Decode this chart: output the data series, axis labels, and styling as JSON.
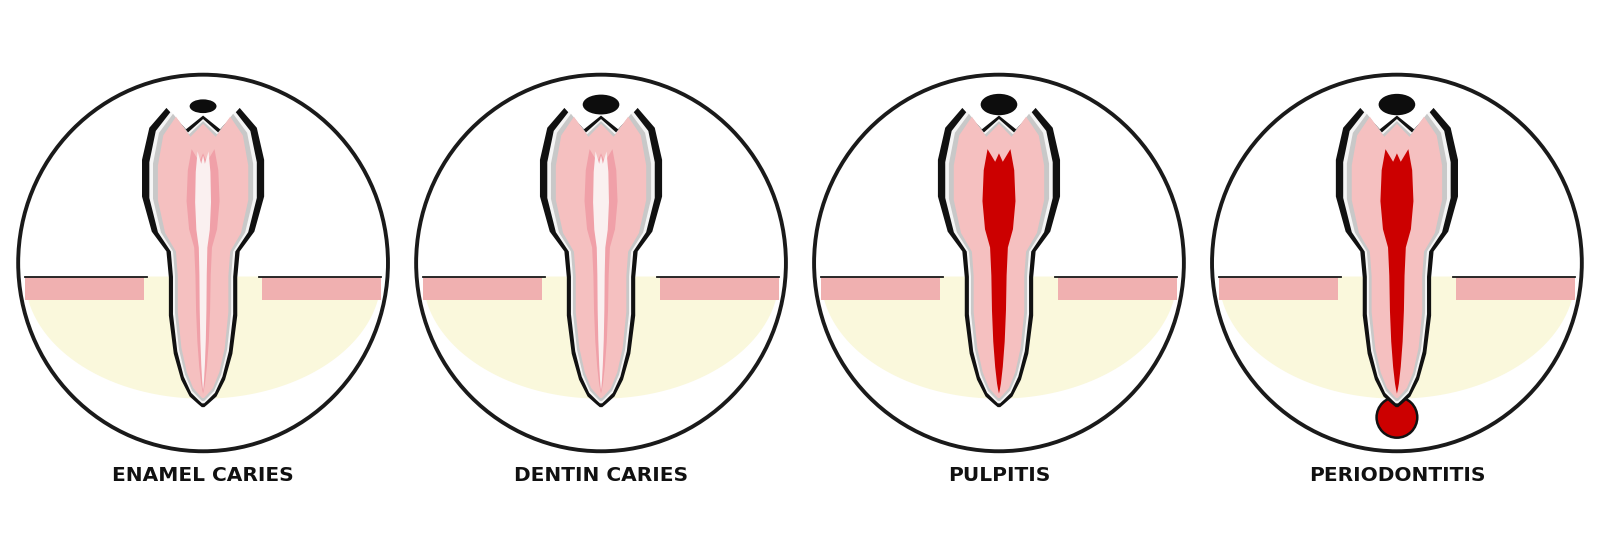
{
  "labels": [
    "ENAMEL CARIES",
    "DENTIN CARIES",
    "PULPITIS",
    "PERIODONTITIS"
  ],
  "bg_color": "#ffffff",
  "circle_edge": "#1a1a1a",
  "circle_lw": 2.8,
  "bone_color": "#faf8dc",
  "outer_tooth": "#111111",
  "white_tooth": "#f5f5f5",
  "enamel_gray": "#c8c8c8",
  "dentin_pink": "#f5c0c0",
  "pulp_pink": "#f0a0a8",
  "pulp_red": "#cc0000",
  "caries_black": "#0d0d0d",
  "gingiva_pink": "#f0b0b0",
  "abscess_red": "#cc0000",
  "label_color": "#111111",
  "font_size": 14.5
}
